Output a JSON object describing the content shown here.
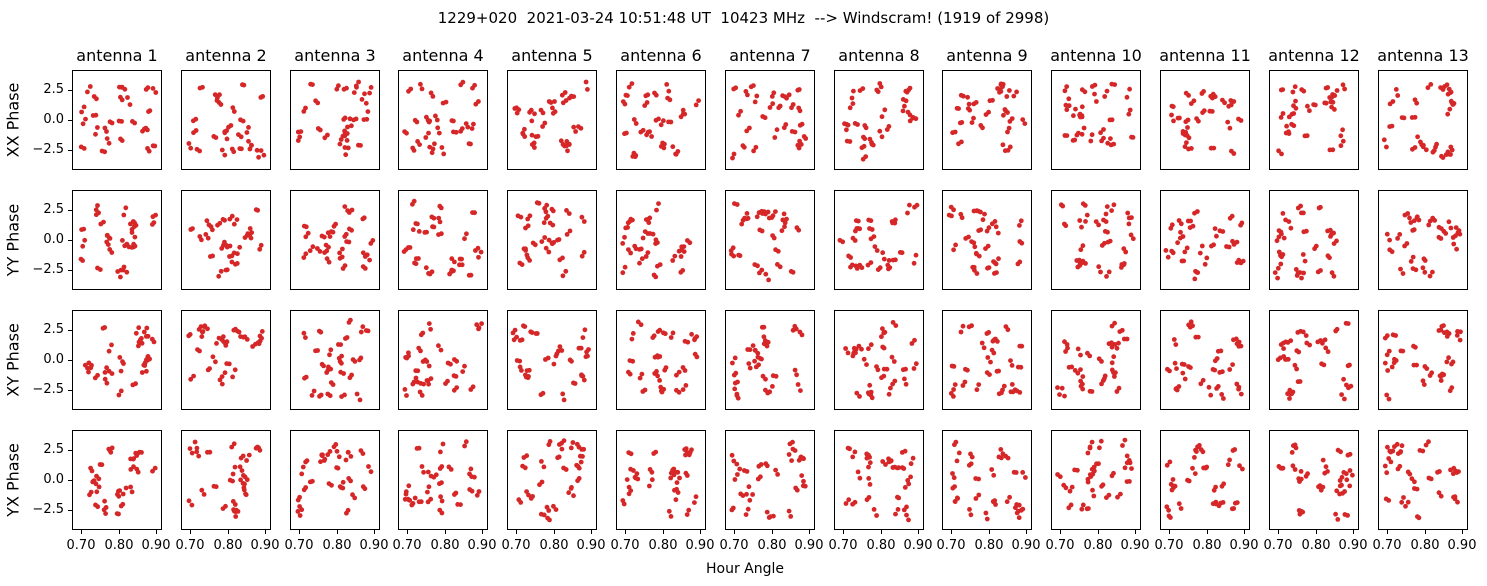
{
  "title": "1229+020  2021-03-24 10:51:48 UT  10423 MHz  --> Windscram! (1919 of 2998)",
  "chart_data": {
    "type": "scatter",
    "title": "1229+020  2021-03-24 10:51:48 UT  10423 MHz  --> Windscram! (1919 of 2998)",
    "grid": {
      "rows": 4,
      "cols": 13
    },
    "row_labels": [
      "XX Phase",
      "YY Phase",
      "XY Phase",
      "YX Phase"
    ],
    "col_titles": [
      "antenna 1",
      "antenna 2",
      "antenna 3",
      "antenna 4",
      "antenna 5",
      "antenna 6",
      "antenna 7",
      "antenna 8",
      "antenna 9",
      "antenna 10",
      "antenna 11",
      "antenna 12",
      "antenna 13"
    ],
    "xlabel": "Hour Angle",
    "xlim": [
      0.675,
      0.915
    ],
    "ylim": [
      -4.2,
      4.2
    ],
    "xticks": {
      "values": [
        0.7,
        0.8,
        0.9
      ],
      "labels": [
        "0.70",
        "0.80",
        "0.90"
      ]
    },
    "yticks": {
      "values": [
        2.5,
        0.0,
        -2.5
      ],
      "labels": [
        "2.5",
        "0.0",
        "−2.5"
      ]
    },
    "marker": {
      "shape": "circle",
      "color": "#d62728",
      "radius_px": 2.4
    },
    "axes_edge_color": "#000000",
    "background_color": "#ffffff",
    "gridlines": false,
    "legend": null,
    "points_per_panel": 50,
    "x_data_range": [
      0.688,
      0.902
    ],
    "y_data_range": [
      -3.35,
      3.35
    ],
    "distribution": "uniform random phase scatter (noise-like), points frequently in tight x-pairs",
    "seed": 20210324
  }
}
